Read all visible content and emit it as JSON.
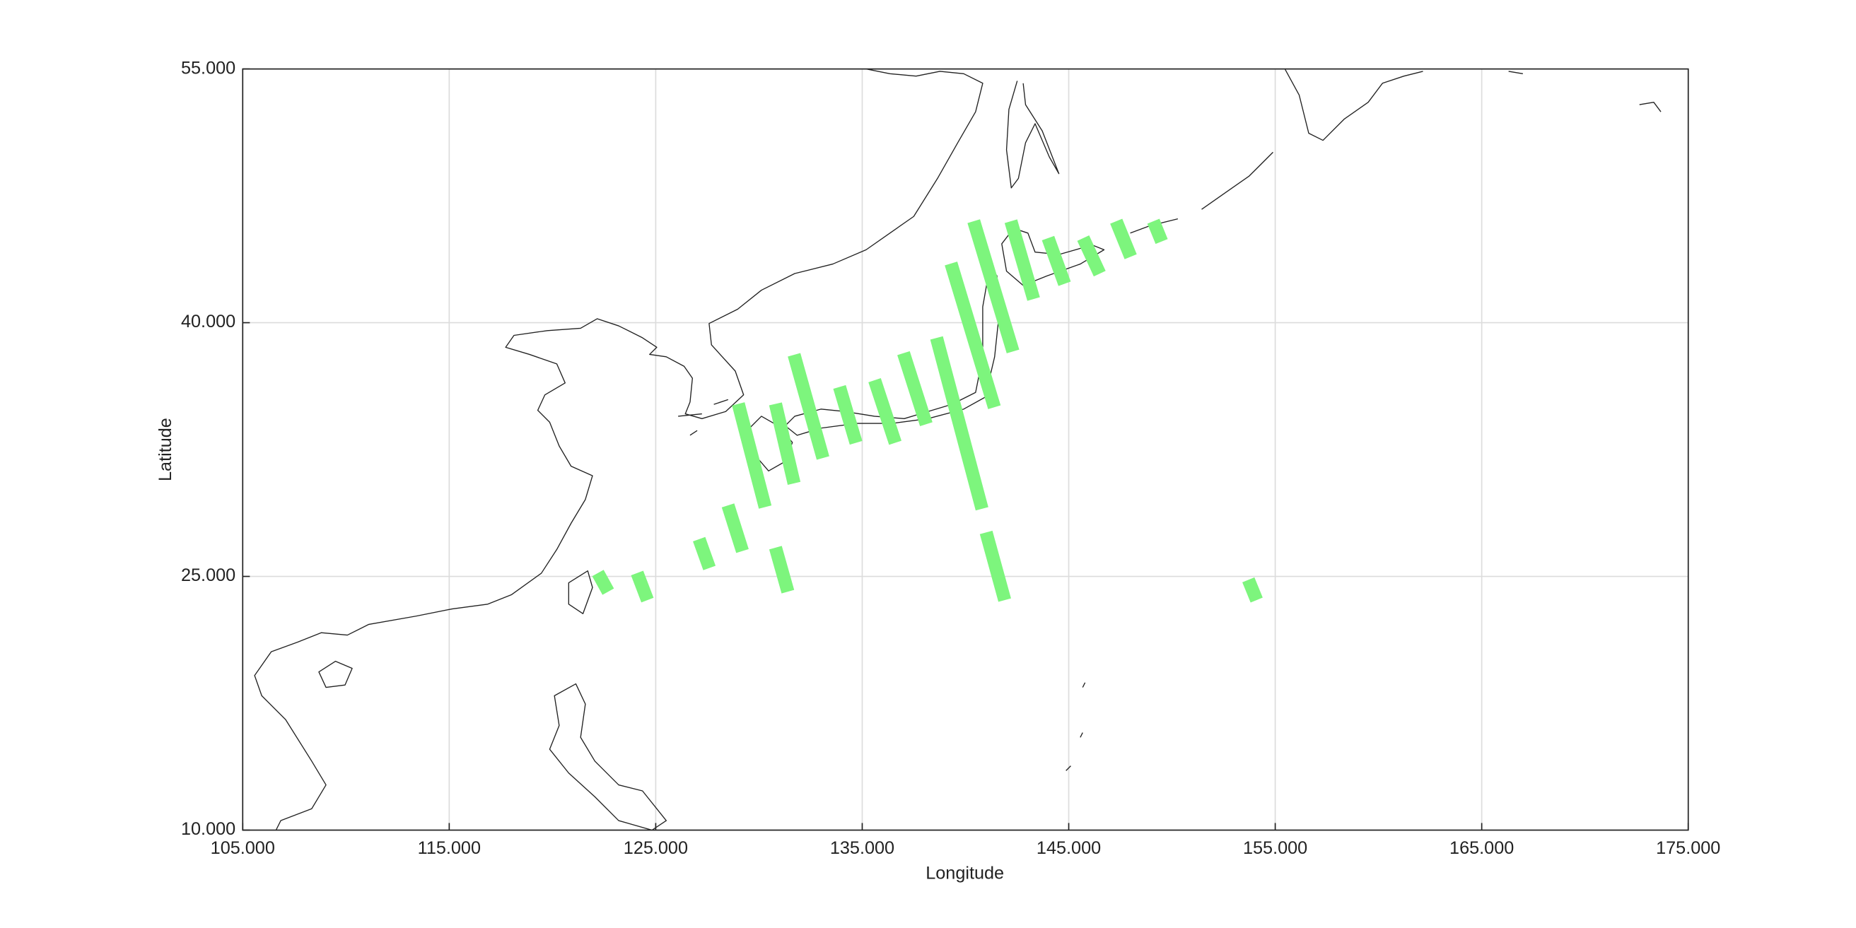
{
  "chart_data": {
    "type": "swath-map",
    "xlabel": "Longitude",
    "ylabel": "Latitude",
    "xlim": [
      105,
      175
    ],
    "xticks": [
      {
        "value": 105,
        "label": "105.000"
      },
      {
        "value": 115,
        "label": "115.000"
      },
      {
        "value": 125,
        "label": "125.000"
      },
      {
        "value": 135,
        "label": "135.000"
      },
      {
        "value": 145,
        "label": "145.000"
      },
      {
        "value": 155,
        "label": "155.000"
      },
      {
        "value": 165,
        "label": "165.000"
      },
      {
        "value": 175,
        "label": "175.000"
      }
    ],
    "ylim": [
      10,
      55
    ],
    "yticks": [
      {
        "value": 10,
        "label": "10.000"
      },
      {
        "value": 25,
        "label": "25.000"
      },
      {
        "value": 40,
        "label": "40.000"
      },
      {
        "value": 55,
        "label": "55.000"
      }
    ],
    "grid": true,
    "color": "#7df57d",
    "swaths": [
      {
        "x": [
          122.2,
          122.7
        ],
        "y": [
          25.2,
          24.1
        ]
      },
      {
        "x": [
          124.1,
          124.6
        ],
        "y": [
          25.2,
          23.6
        ]
      },
      {
        "x": [
          127.1,
          127.6
        ],
        "y": [
          27.2,
          25.5
        ]
      },
      {
        "x": [
          128.5,
          129.2
        ],
        "y": [
          29.2,
          26.5
        ]
      },
      {
        "x": [
          130.8,
          131.4
        ],
        "y": [
          26.7,
          24.1
        ]
      },
      {
        "x": [
          129.0,
          130.3
        ],
        "y": [
          35.2,
          29.1
        ]
      },
      {
        "x": [
          130.8,
          131.7
        ],
        "y": [
          35.2,
          30.5
        ]
      },
      {
        "x": [
          131.7,
          133.1
        ],
        "y": [
          38.1,
          32.0
        ]
      },
      {
        "x": [
          133.9,
          134.7
        ],
        "y": [
          36.2,
          32.9
        ]
      },
      {
        "x": [
          135.6,
          136.6
        ],
        "y": [
          36.6,
          32.9
        ]
      },
      {
        "x": [
          137.0,
          138.1
        ],
        "y": [
          38.2,
          34.0
        ]
      },
      {
        "x": [
          138.6,
          140.8
        ],
        "y": [
          39.1,
          29.0
        ]
      },
      {
        "x": [
          139.3,
          141.4
        ],
        "y": [
          43.5,
          35.0
        ]
      },
      {
        "x": [
          140.4,
          142.3
        ],
        "y": [
          46.0,
          38.3
        ]
      },
      {
        "x": [
          142.2,
          143.3
        ],
        "y": [
          46.0,
          41.4
        ]
      },
      {
        "x": [
          144.0,
          144.8
        ],
        "y": [
          45.0,
          42.3
        ]
      },
      {
        "x": [
          145.7,
          146.5
        ],
        "y": [
          45.0,
          42.9
        ]
      },
      {
        "x": [
          147.3,
          148.0
        ],
        "y": [
          46.0,
          43.9
        ]
      },
      {
        "x": [
          149.1,
          149.5
        ],
        "y": [
          46.0,
          44.8
        ]
      },
      {
        "x": [
          141.0,
          141.9
        ],
        "y": [
          27.6,
          23.6
        ]
      },
      {
        "x": [
          153.7,
          154.1
        ],
        "y": [
          24.8,
          23.6
        ]
      }
    ]
  }
}
